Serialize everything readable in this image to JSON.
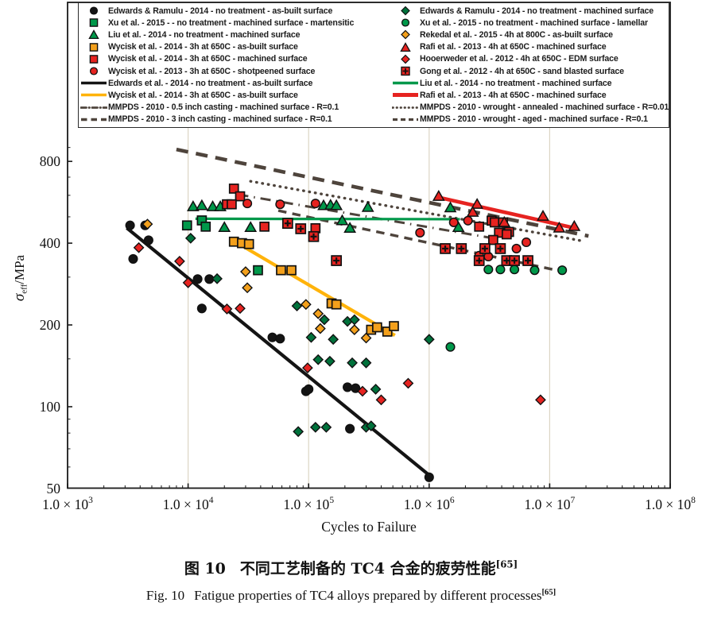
{
  "palette": {
    "black": "#141414",
    "green": "#00984A",
    "darkgreen": "#00713B",
    "orange": "#F3A01C",
    "orangeLine": "#FFB30A",
    "red": "#E62320",
    "taupe": "#4E443C",
    "grid": "#DCD5C4",
    "axis": "#1a1a1a"
  },
  "legend": {
    "left": [
      {
        "marker": "circle",
        "color": "black",
        "label": "Edwards & Ramulu - 2014 - no treatment - as-built surface"
      },
      {
        "marker": "square",
        "color": "green",
        "label": "Xu et al. - 2015 - - no treatment - machined surface - martensitic"
      },
      {
        "marker": "triangle",
        "color": "green",
        "label": "Liu et al. - 2014 - no treatment - machined surface"
      },
      {
        "marker": "square",
        "color": "orange",
        "label": "Wycisk et al. - 2014 - 3h at 650C - as-built surface"
      },
      {
        "marker": "square",
        "color": "red",
        "label": "Wycisk et al. - 2014 - 3h at 650C - machined surface"
      },
      {
        "marker": "circle",
        "color": "red",
        "label": "Wycisk et al. - 2013 - 3h at 650C - shotpeened surface"
      },
      {
        "marker": "line",
        "color": "black",
        "label": "Edwards et al. - 2014 - no treatment - as-built surface"
      },
      {
        "marker": "line",
        "color": "orangeLine",
        "label": "Wycisk et al. - 2014 - 3h at 650C - as-built surface"
      },
      {
        "marker": "dashdot",
        "color": "taupe",
        "label": "MMPDS - 2010 - 0.5 inch casting - machined surface - R=0.1"
      },
      {
        "marker": "dash-bold",
        "color": "taupe",
        "label": "MMPDS - 2010 - 3 inch casting - machined surface - R=0.1"
      }
    ],
    "right": [
      {
        "marker": "diamond",
        "color": "darkgreen",
        "label": "Edwards & Ramulu - 2014 - no treatment - machined surface"
      },
      {
        "marker": "circle",
        "color": "green",
        "label": "Xu et al. - 2015 - no treatment - machined surface - lamellar"
      },
      {
        "marker": "diamond",
        "color": "orange",
        "label": "Rekedal et al. - 2015 - 4h at 800C - as-built surface"
      },
      {
        "marker": "triangle",
        "color": "red",
        "label": "Rafi et al. - 2013 - 4h at 650C - machined surface"
      },
      {
        "marker": "diamond",
        "color": "red",
        "label": "Hooerweder et al. - 2012 - 4h at 650C - EDM surface"
      },
      {
        "marker": "square-cross",
        "color": "red",
        "label": "Gong et al. - 2012 - 4h at 650C - sand blasted surface"
      },
      {
        "marker": "line",
        "color": "green",
        "label": "Liu et al. - 2014 - no treatment - machined surface"
      },
      {
        "marker": "line-thick",
        "color": "red",
        "label": "Rafi et al. - 2013 - 4h at 650C - machined surface"
      },
      {
        "marker": "dotted",
        "color": "taupe",
        "label": "MMPDS - 2010 - wrought - annealed - machined surface - R=0.01"
      },
      {
        "marker": "dash",
        "color": "taupe",
        "label": "MMPDS - 2010 - wrought - aged - machined surface - R=0.1"
      }
    ]
  },
  "axes": {
    "x_label": "Cycles to Failure",
    "x_tick_mantissa": "1.0 × 10",
    "x_tick_exponents": [
      "3",
      "4",
      "5",
      "6",
      "7",
      "8"
    ],
    "y_tick_labels": [
      "800",
      "400",
      "200",
      "100",
      "50"
    ],
    "y_tick_values": [
      800,
      400,
      200,
      100,
      50
    ],
    "y_minor_values": [
      60,
      70,
      80,
      90,
      150,
      300,
      500,
      600,
      700,
      900
    ],
    "y_label_sigma": "σ",
    "y_label_sub": "eff",
    "y_label_unit": "/MPa"
  },
  "caption": {
    "zh_prefix": "图 10",
    "zh_text": "不同工艺制备的 TC4 合金的疲劳性能",
    "ref": "[65]",
    "en_prefix": "Fig. 10",
    "en_text": "Fatigue properties of TC4 alloys prepared by different processes"
  },
  "chart_data": {
    "type": "scatter",
    "title": "",
    "x_axis": {
      "label": "Cycles to Failure",
      "scale": "log",
      "range": [
        1000,
        100000000
      ]
    },
    "y_axis": {
      "label": "σ_eff/MPa",
      "scale": "log",
      "range": [
        50,
        1000
      ],
      "ticks": [
        50,
        100,
        200,
        400,
        800
      ]
    },
    "grid": "vertical-decades",
    "legend_position": "top-inside-box",
    "series": [
      {
        "name": "Edwards & Ramulu - 2014 - no treatment - as-built surface",
        "marker": "circle",
        "color": "black",
        "points": [
          [
            3300,
            465
          ],
          [
            4400,
            465
          ],
          [
            4700,
            410
          ],
          [
            3500,
            350
          ],
          [
            12000,
            295
          ],
          [
            15000,
            295
          ],
          [
            13000,
            230
          ],
          [
            50000,
            180
          ],
          [
            58000,
            178
          ],
          [
            95000,
            114
          ],
          [
            100000,
            116
          ],
          [
            210000,
            118
          ],
          [
            245000,
            117
          ],
          [
            220000,
            83
          ],
          [
            1000000,
            55
          ]
        ]
      },
      {
        "name": "Xu et al. - 2015 - no treatment - machined surface - martensitic",
        "marker": "square",
        "color": "green",
        "points": [
          [
            9800,
            465
          ],
          [
            13000,
            485
          ],
          [
            14000,
            460
          ],
          [
            38000,
            318
          ]
        ]
      },
      {
        "name": "Liu et al. - 2014 - no treatment - machined surface",
        "marker": "triangle",
        "color": "green",
        "points": [
          [
            11000,
            545
          ],
          [
            13000,
            550
          ],
          [
            16000,
            545
          ],
          [
            18500,
            545
          ],
          [
            20000,
            457
          ],
          [
            33000,
            457
          ],
          [
            133000,
            550
          ],
          [
            152000,
            552
          ],
          [
            170000,
            550
          ],
          [
            190000,
            484
          ],
          [
            220000,
            454
          ],
          [
            310000,
            542
          ],
          [
            1500000,
            540
          ],
          [
            1750000,
            457
          ]
        ]
      },
      {
        "name": "Wycisk et al. - 2014 - 3h at 650C - as-built surface",
        "marker": "square",
        "color": "orange",
        "points": [
          [
            24000,
            405
          ],
          [
            28000,
            400
          ],
          [
            32000,
            397
          ],
          [
            59000,
            318
          ],
          [
            72000,
            318
          ],
          [
            155000,
            240
          ],
          [
            170000,
            238
          ],
          [
            330000,
            192
          ],
          [
            370000,
            196
          ],
          [
            450000,
            189
          ],
          [
            510000,
            198
          ]
        ]
      },
      {
        "name": "Wycisk et al. - 2014 - 3h at 650C - machined surface",
        "marker": "square",
        "color": "red",
        "points": [
          [
            24000,
            635
          ],
          [
            27000,
            595
          ],
          [
            21000,
            556
          ],
          [
            23000,
            556
          ],
          [
            43000,
            460
          ],
          [
            114000,
            454
          ],
          [
            2600000,
            460
          ],
          [
            3300000,
            484
          ],
          [
            3800000,
            437
          ],
          [
            4600000,
            440
          ],
          [
            3400000,
            411
          ],
          [
            4400000,
            431
          ],
          [
            3500000,
            477
          ],
          [
            4100000,
            477
          ]
        ]
      },
      {
        "name": "Wycisk et al. - 2013 - 3h at 650C - shotpeened surface",
        "marker": "circle",
        "color": "red",
        "points": [
          [
            31000,
            560
          ],
          [
            58000,
            556
          ],
          [
            114000,
            560
          ],
          [
            840000,
            437
          ],
          [
            1600000,
            477
          ],
          [
            2100000,
            484
          ],
          [
            2600000,
            360
          ],
          [
            3100000,
            357
          ],
          [
            5300000,
            382
          ],
          [
            6400000,
            403
          ]
        ]
      },
      {
        "name": "Edwards & Ramulu - 2014 - no treatment - machined surface",
        "marker": "diamond",
        "color": "darkgreen",
        "points": [
          [
            10500,
            417
          ],
          [
            17400,
            296
          ],
          [
            80000,
            235
          ],
          [
            105000,
            180
          ],
          [
            135000,
            209
          ],
          [
            160000,
            177
          ],
          [
            210000,
            206
          ],
          [
            240000,
            209
          ],
          [
            120000,
            149
          ],
          [
            150000,
            147
          ],
          [
            230000,
            145
          ],
          [
            300000,
            145
          ],
          [
            360000,
            116
          ],
          [
            1000000,
            177
          ],
          [
            82000,
            81
          ],
          [
            114000,
            84
          ],
          [
            140000,
            84
          ],
          [
            300000,
            84
          ],
          [
            330000,
            85
          ]
        ]
      },
      {
        "name": "Xu et al. - 2015 - no treatment - machined surface - lamellar",
        "marker": "circle",
        "color": "green",
        "points": [
          [
            1500000,
            166
          ],
          [
            3100000,
            320
          ],
          [
            3900000,
            320
          ],
          [
            5100000,
            320
          ],
          [
            7500000,
            318
          ],
          [
            12700000,
            318
          ]
        ]
      },
      {
        "name": "Rekedal et al. - 2015 - 4h at 800C - as-built surface",
        "marker": "diamond",
        "color": "orange",
        "points": [
          [
            4600,
            470
          ],
          [
            30000,
            314
          ],
          [
            31000,
            274
          ],
          [
            95000,
            238
          ],
          [
            120000,
            220
          ],
          [
            125000,
            194
          ],
          [
            240000,
            192
          ],
          [
            300000,
            179
          ]
        ]
      },
      {
        "name": "Rafi et al. - 2013 - 4h at 650C - machined surface",
        "marker": "triangle",
        "color": "red",
        "points": [
          [
            1200000,
            595
          ],
          [
            2500000,
            556
          ],
          [
            2300000,
            520
          ],
          [
            4200000,
            477
          ],
          [
            8800000,
            503
          ],
          [
            12000000,
            455
          ],
          [
            16000000,
            461
          ]
        ]
      },
      {
        "name": "Hooerweder et al. - 2012 - 4h at 650C - EDM surface",
        "marker": "diamond",
        "color": "red",
        "points": [
          [
            3900,
            385
          ],
          [
            8500,
            343
          ],
          [
            10000,
            286
          ],
          [
            21000,
            229
          ],
          [
            27000,
            230
          ],
          [
            98000,
            139
          ],
          [
            280000,
            114
          ],
          [
            400000,
            106
          ],
          [
            670000,
            122
          ],
          [
            8400000,
            106
          ]
        ]
      },
      {
        "name": "Gong et al. - 2012 - 4h at 650C - sand blasted surface",
        "marker": "square-cross",
        "color": "red",
        "points": [
          [
            67000,
            473
          ],
          [
            86000,
            452
          ],
          [
            110000,
            423
          ],
          [
            170000,
            345
          ],
          [
            1360000,
            382
          ],
          [
            1850000,
            382
          ],
          [
            2900000,
            382
          ],
          [
            3900000,
            382
          ],
          [
            2600000,
            345
          ],
          [
            4400000,
            345
          ],
          [
            5100000,
            345
          ],
          [
            6600000,
            345
          ]
        ]
      }
    ],
    "fit_lines": [
      {
        "name": "Edwards et al. - 2014 - no treatment - as-built surface",
        "style": "solid",
        "color": "black",
        "width": 4.2,
        "from": [
          3100,
          455
        ],
        "to": [
          1000000,
          56
        ]
      },
      {
        "name": "Wycisk et al. - 2014 - 3h at 650C - as-built surface",
        "style": "solid",
        "color": "orangeLine",
        "width": 4.2,
        "from": [
          25000,
          403
        ],
        "to": [
          520000,
          183
        ]
      },
      {
        "name": "Liu et al. - 2014 - no treatment - machined surface",
        "style": "solid",
        "color": "green",
        "width": 3.2,
        "from": [
          11500,
          492
        ],
        "to": [
          1800000,
          490
        ]
      },
      {
        "name": "Rafi et al. - 2013 - 4h at 650C - machined surface",
        "style": "solid",
        "color": "red",
        "width": 4.6,
        "from": [
          1170000,
          591
        ],
        "to": [
          16000000,
          455
        ]
      },
      {
        "name": "MMPDS - 2010 - 3 inch casting - machined surface - R=0.1",
        "style": "dash-bold",
        "color": "taupe",
        "width": 4.6,
        "from": [
          8000,
          885
        ],
        "to": [
          21000000,
          425
        ]
      },
      {
        "name": "MMPDS - 2010 - wrought - annealed - machined surface - R=0.01",
        "style": "dotted",
        "color": "taupe",
        "width": 3.4,
        "from": [
          33000,
          676
        ],
        "to": [
          18500000,
          408
        ]
      },
      {
        "name": "MMPDS - 2010 - 0.5 inch casting - machined surface - R=0.1",
        "style": "dashdot",
        "color": "taupe",
        "width": 3.0,
        "from": [
          26000,
          604
        ],
        "to": [
          3400000,
          417
        ]
      },
      {
        "name": "MMPDS - 2010 - wrought - aged - machined surface - R=0.1",
        "style": "dash",
        "color": "taupe",
        "width": 3.4,
        "from": [
          56000,
          527
        ],
        "to": [
          11400000,
          318
        ]
      }
    ]
  }
}
